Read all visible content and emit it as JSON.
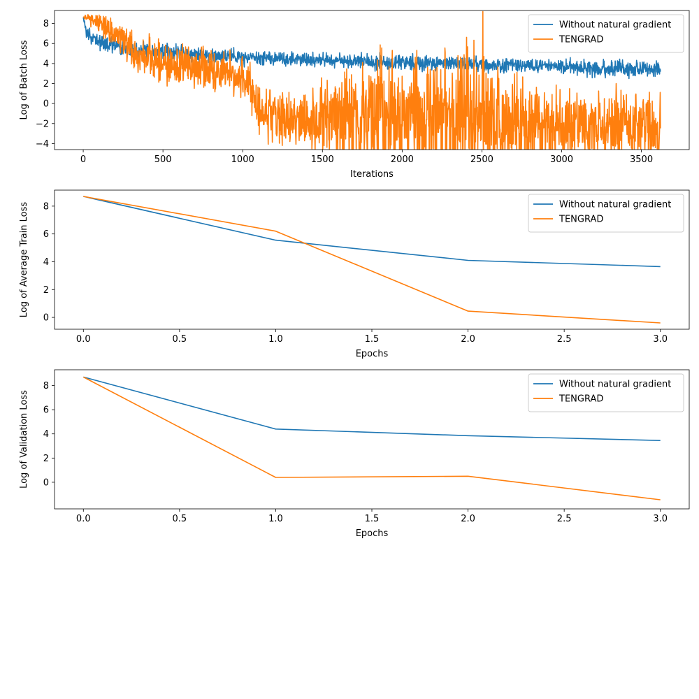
{
  "chart_data": [
    {
      "type": "line",
      "title": "",
      "xlabel": "Iterations",
      "ylabel": "Log of Batch Loss",
      "xlim": [
        -180,
        3800
      ],
      "ylim": [
        -4.6,
        9.3
      ],
      "xticks": [
        0,
        500,
        1000,
        1500,
        2000,
        2500,
        3000,
        3500
      ],
      "yticks": [
        -4,
        -2,
        0,
        2,
        4,
        6,
        8
      ],
      "xtick_labels": [
        "0",
        "500",
        "1000",
        "1500",
        "2000",
        "2500",
        "3000",
        "3500"
      ],
      "ytick_labels": [
        "−4",
        "−2",
        "0",
        "2",
        "4",
        "6",
        "8"
      ],
      "legend_position": "upper right",
      "grid": false,
      "noise_seed": 7,
      "series": [
        {
          "name": "Without natural gradient",
          "color": "#1f77b4",
          "anchors_x": [
            0,
            20,
            50,
            100,
            200,
            300,
            500,
            800,
            1000,
            1500,
            2000,
            2500,
            3000,
            3300,
            3620
          ],
          "anchors_y": [
            8.7,
            7.2,
            6.6,
            6.3,
            5.8,
            5.4,
            5.1,
            4.8,
            4.6,
            4.3,
            4.1,
            3.9,
            3.7,
            3.5,
            3.4
          ],
          "noise_amplitude": [
            0.1,
            0.35,
            0.35,
            0.4,
            0.4,
            0.4,
            0.4,
            0.35,
            0.35,
            0.35,
            0.35,
            0.35,
            0.35,
            0.4,
            0.4
          ]
        },
        {
          "name": "TENGRAD",
          "color": "#ff7f0e",
          "anchors_x": [
            0,
            100,
            200,
            300,
            400,
            500,
            700,
            900,
            1000,
            1080,
            1100,
            1200,
            1400,
            1600,
            1800,
            2000,
            2200,
            2400,
            2600,
            2800,
            3000,
            3300,
            3620
          ],
          "anchors_y": [
            8.7,
            8.0,
            7.0,
            5.5,
            4.5,
            3.9,
            3.5,
            3.0,
            2.6,
            1.2,
            -1.0,
            -1.5,
            -1.6,
            -1.7,
            -1.5,
            -1.6,
            -1.5,
            -1.3,
            -1.6,
            -2.3,
            -2.4,
            -2.2,
            -2.3
          ],
          "noise_amplitude": [
            0.1,
            0.5,
            0.8,
            0.9,
            1.0,
            1.0,
            1.0,
            1.0,
            1.0,
            1.1,
            1.1,
            1.3,
            1.4,
            2.3,
            3.0,
            2.8,
            3.0,
            3.2,
            3.0,
            1.6,
            1.7,
            1.9,
            1.6
          ]
        }
      ]
    },
    {
      "type": "line",
      "title": "",
      "xlabel": "Epochs",
      "ylabel": "Log of Average Train Loss",
      "xlim": [
        -0.15,
        3.15
      ],
      "ylim": [
        -0.85,
        9.15
      ],
      "xticks": [
        0,
        0.5,
        1,
        1.5,
        2,
        2.5,
        3
      ],
      "yticks": [
        0,
        2,
        4,
        6,
        8
      ],
      "xtick_labels": [
        "0.0",
        "0.5",
        "1.0",
        "1.5",
        "2.0",
        "2.5",
        "3.0"
      ],
      "ytick_labels": [
        "0",
        "2",
        "4",
        "6",
        "8"
      ],
      "legend_position": "upper right",
      "grid": false,
      "series": [
        {
          "name": "Without natural gradient",
          "color": "#1f77b4",
          "x": [
            0,
            1,
            2,
            3
          ],
          "y": [
            8.7,
            5.55,
            4.1,
            3.65
          ]
        },
        {
          "name": "TENGRAD",
          "color": "#ff7f0e",
          "x": [
            0,
            1,
            2,
            3
          ],
          "y": [
            8.7,
            6.2,
            0.45,
            -0.4
          ]
        }
      ]
    },
    {
      "type": "line",
      "title": "",
      "xlabel": "Epochs",
      "ylabel": "Log of Validation Loss",
      "xlim": [
        -0.15,
        3.15
      ],
      "ylim": [
        -2.2,
        9.3
      ],
      "xticks": [
        0,
        0.5,
        1,
        1.5,
        2,
        2.5,
        3
      ],
      "yticks": [
        0,
        2,
        4,
        6,
        8
      ],
      "xtick_labels": [
        "0.0",
        "0.5",
        "1.0",
        "1.5",
        "2.0",
        "2.5",
        "3.0"
      ],
      "ytick_labels": [
        "0",
        "2",
        "4",
        "6",
        "8"
      ],
      "legend_position": "upper right",
      "grid": false,
      "series": [
        {
          "name": "Without natural gradient",
          "color": "#1f77b4",
          "x": [
            0,
            1,
            2,
            3
          ],
          "y": [
            8.7,
            4.4,
            3.85,
            3.45
          ]
        },
        {
          "name": "TENGRAD",
          "color": "#ff7f0e",
          "x": [
            0,
            1,
            2,
            3
          ],
          "y": [
            8.7,
            0.4,
            0.5,
            -1.45
          ]
        }
      ]
    }
  ]
}
